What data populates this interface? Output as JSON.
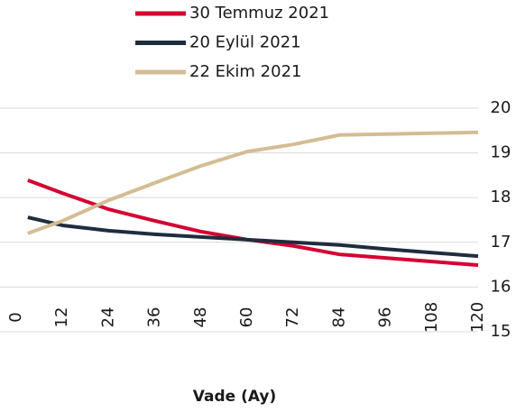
{
  "chart_data": {
    "type": "line",
    "x_label": "Vade (Ay)",
    "x": [
      3,
      12,
      24,
      36,
      48,
      60,
      72,
      84,
      96,
      108,
      120
    ],
    "series": [
      {
        "name": "30 Temmuz 2021",
        "color": "#d50032",
        "values": [
          18.39,
          18.1,
          17.74,
          17.48,
          17.24,
          17.06,
          16.92,
          16.73,
          16.65,
          16.57,
          16.49
        ]
      },
      {
        "name": "20 Eylül 2021",
        "color": "#1f2d3d",
        "values": [
          17.56,
          17.38,
          17.26,
          17.18,
          17.12,
          17.06,
          17.0,
          16.94,
          16.85,
          16.77,
          16.69
        ]
      },
      {
        "name": "22 Ekim 2021",
        "color": "#d4bc94",
        "values": [
          17.2,
          17.48,
          17.94,
          18.33,
          18.71,
          19.03,
          19.19,
          19.4,
          19.42,
          19.44,
          19.46
        ]
      }
    ],
    "xlim": [
      0,
      120
    ],
    "xticks": [
      0,
      12,
      24,
      36,
      48,
      60,
      72,
      84,
      96,
      108,
      120
    ],
    "ylim": [
      15,
      20
    ],
    "yticks": [
      15,
      16,
      17,
      18,
      19,
      20
    ],
    "grid": true,
    "legend": "top"
  }
}
